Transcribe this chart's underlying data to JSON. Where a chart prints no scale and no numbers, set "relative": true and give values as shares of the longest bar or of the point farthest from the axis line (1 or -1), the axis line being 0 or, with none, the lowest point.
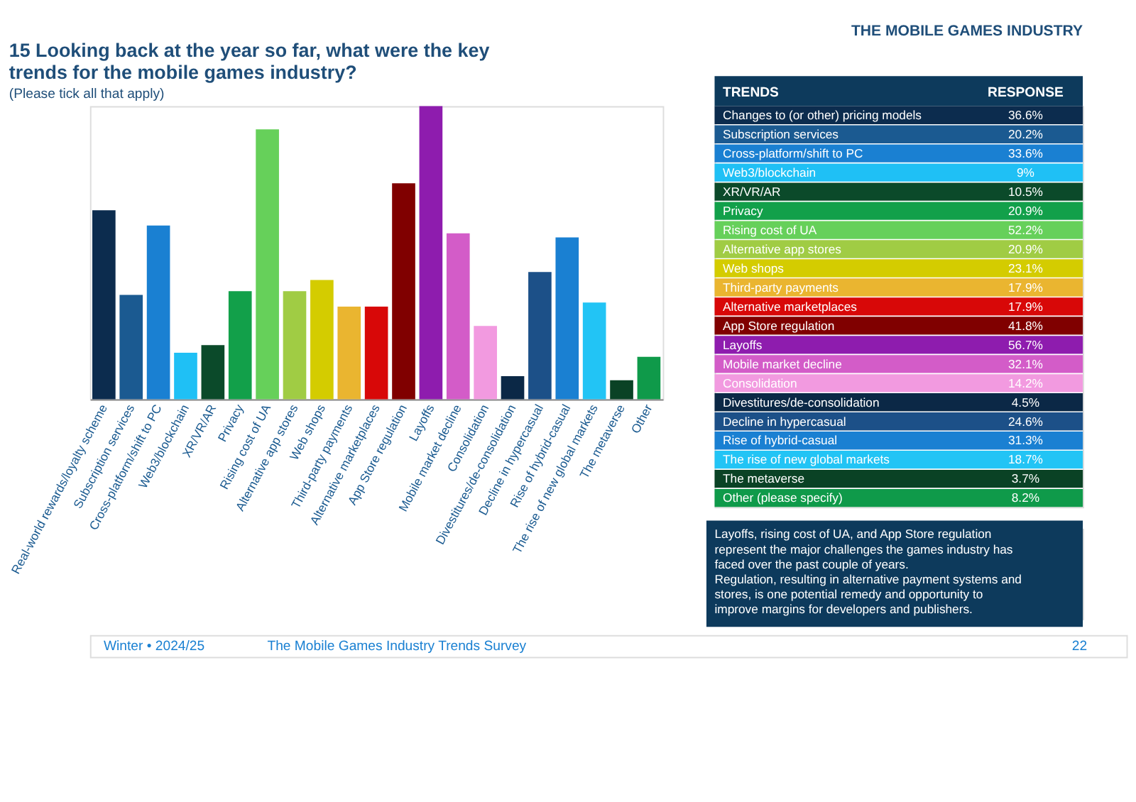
{
  "chart_data": [
    {
      "type": "bar",
      "title": "15  Looking back at the year so far, what were the key trends for the mobile games industry?",
      "subtitle": "(Please tick all that apply)",
      "relative": true,
      "categories": [
        "Real-world rewards/loyalty scheme",
        "Subscription services",
        "Cross-platform/shift to PC",
        "Web3/blockchain",
        "XR/VR/AR",
        "Privacy",
        "Rising cost of UA",
        "Alternative app stores",
        "Web shops",
        "Third-party payments",
        "Alternative marketplaces",
        "App Store regulation",
        "Layoffs",
        "Mobile market decline",
        "Consolidation",
        "Divestitures/de-consolidation",
        "Decline in hypercasual",
        "Rise of hybrid-casual",
        "The rise of new global markets",
        "The metaverse",
        "Other"
      ],
      "values": [
        0.645,
        0.356,
        0.593,
        0.159,
        0.185,
        0.369,
        0.921,
        0.369,
        0.407,
        0.316,
        0.316,
        0.737,
        1,
        0.566,
        0.25,
        0.079,
        0.434,
        0.552,
        0.33,
        0.065,
        0.145
      ],
      "colors": [
        "#0c2c4e",
        "#1b5a91",
        "#1a80d2",
        "#1fc0f5",
        "#0b4a2a",
        "#12a04a",
        "#66d05a",
        "#a0cc44",
        "#d4cc00",
        "#eab530",
        "#d80808",
        "#800000",
        "#8e1cae",
        "#d35cc8",
        "#f29ae0",
        "#0b2846",
        "#1c5088",
        "#1a80d2",
        "#22c4f5",
        "#0a4225",
        "#0f9a4a"
      ],
      "annotations": [
        "Winter • 2024/25",
        "The Mobile Games Industry Trends Survey",
        "22"
      ]
    },
    {
      "type": "other",
      "title": "THE MOBILE GAMES INDUSTRY",
      "xlabel": "TRENDS",
      "ylabel": "RESPONSE",
      "categories": [
        "Changes to (or other) pricing models",
        "Subscription services",
        "Cross-platform/shift to PC",
        "Web3/blockchain",
        "XR/VR/AR",
        "Privacy",
        "Rising cost of UA",
        "Alternative app stores",
        "Web shops",
        "Third-party payments",
        "Alternative marketplaces",
        "App Store regulation",
        "Layoffs",
        "Mobile market decline",
        "Consolidation",
        "Divestitures/de-consolidation",
        "Decline in hypercasual",
        "Rise of hybrid-casual",
        "The rise of new global markets",
        "The metaverse",
        "Other (please specify)"
      ],
      "values": [
        36.6,
        20.2,
        33.6,
        9,
        10.5,
        20.9,
        52.2,
        20.9,
        23.1,
        17.9,
        17.9,
        41.8,
        56.7,
        32.1,
        14.2,
        4.5,
        24.6,
        31.3,
        18.7,
        3.7,
        8.2
      ],
      "value_labels": [
        "36.6%",
        "20.2%",
        "33.6%",
        "9%",
        "10.5%",
        "20.9%",
        "52.2%",
        "20.9%",
        "23.1%",
        "17.9%",
        "17.9%",
        "41.8%",
        "56.7%",
        "32.1%",
        "14.2%",
        "4.5%",
        "24.6%",
        "31.3%",
        "18.7%",
        "3.7%",
        "8.2%"
      ],
      "colors": [
        "#0c2c4e",
        "#1b5a91",
        "#1a80d2",
        "#1fc0f5",
        "#0b4a2a",
        "#12a04a",
        "#66d05a",
        "#a0cc44",
        "#d4cc00",
        "#eab530",
        "#d80808",
        "#800000",
        "#8e1cae",
        "#d35cc8",
        "#f29ae0",
        "#0b2846",
        "#1c5088",
        "#1a80d2",
        "#22c4f5",
        "#0a4225",
        "#0f9a4a"
      ],
      "annotations": [
        "Layoffs, rising cost of UA, and App Store regulation represent the major challenges the games industry has faced over the past couple of years.",
        "Regulation, resulting in alternative payment systems and stores, is one potential remedy and opportunity to improve margins for developers and publishers."
      ]
    }
  ]
}
